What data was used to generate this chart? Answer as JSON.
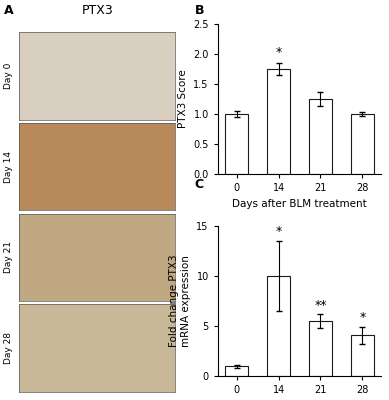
{
  "panel_B": {
    "categories": [
      "0",
      "14",
      "21",
      "28"
    ],
    "values": [
      1.0,
      1.75,
      1.25,
      1.0
    ],
    "errors": [
      0.05,
      0.1,
      0.12,
      0.04
    ],
    "ylabel": "PTX3 Score",
    "xlabel": "Days after BLM treatment",
    "ylim": [
      0,
      2.5
    ],
    "yticks": [
      0.0,
      0.5,
      1.0,
      1.5,
      2.0,
      2.5
    ],
    "ytick_labels": [
      "0.0",
      "0.5",
      "1.0",
      "1.5",
      "2.0",
      "2.5"
    ],
    "significance": [
      "",
      "*",
      "",
      ""
    ]
  },
  "panel_C": {
    "categories": [
      "0",
      "14",
      "21",
      "28"
    ],
    "values": [
      1.0,
      10.0,
      5.5,
      4.1
    ],
    "errors": [
      0.15,
      3.5,
      0.7,
      0.85
    ],
    "ylabel": "Fold change PTX3\nmRNA expression",
    "xlabel": "Days after BLM treatment",
    "ylim": [
      0,
      15
    ],
    "yticks": [
      0,
      5,
      10,
      15
    ],
    "ytick_labels": [
      "0",
      "5",
      "10",
      "15"
    ],
    "significance": [
      "",
      "*",
      "**",
      "*"
    ]
  },
  "img_panels": [
    {
      "label": "Day 0",
      "color": "#d8cfc0"
    },
    {
      "label": "Day 14",
      "color": "#b8895a"
    },
    {
      "label": "Day 21",
      "color": "#c0a882"
    },
    {
      "label": "Day 28",
      "color": "#c8b898"
    }
  ],
  "ptx3_title": "PTX3",
  "panel_A_label": "A",
  "panel_B_label": "B",
  "panel_C_label": "C",
  "bar_color": "#ffffff",
  "bar_edgecolor": "#1a1a1a",
  "bar_width": 0.55,
  "background_color": "#ffffff",
  "fs_label": 7.5,
  "fs_tick": 7,
  "fs_panel": 9,
  "fs_sig": 9,
  "fs_day_label": 6.5,
  "fs_ptx3": 9
}
